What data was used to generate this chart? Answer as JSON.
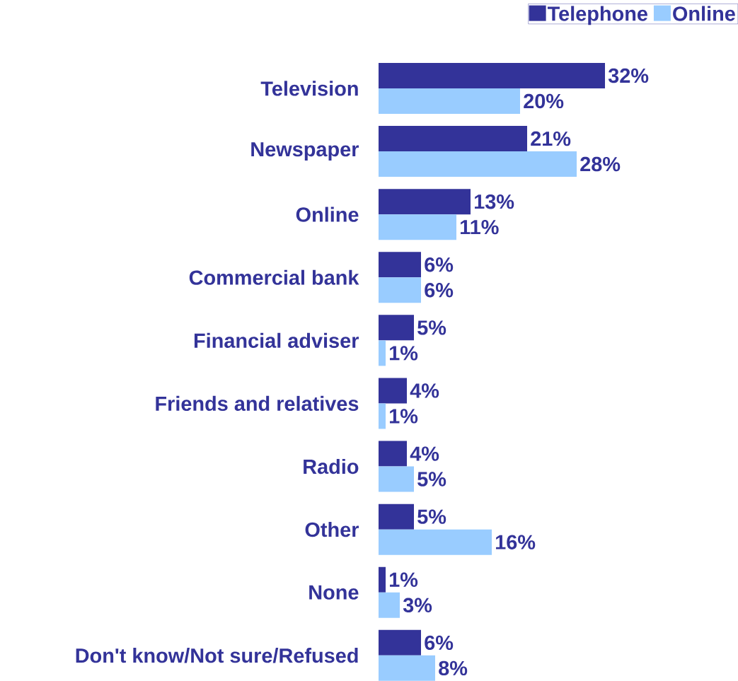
{
  "chart_data": {
    "type": "bar",
    "orientation": "horizontal",
    "legend": "top right",
    "categories": [
      "Television",
      "Newspaper",
      "Online",
      "Commercial bank",
      "Financial adviser",
      "Friends and relatives",
      "Radio",
      "Other",
      "None",
      "Don't know/Not sure/Refused"
    ],
    "series": [
      {
        "name": "Telephone",
        "color": "#333399",
        "values": [
          32,
          21,
          13,
          6,
          5,
          4,
          4,
          5,
          1,
          6
        ],
        "value_labels": [
          "32%",
          "21%",
          "13%",
          "6%",
          "5%",
          "4%",
          "4%",
          "5%",
          "1%",
          "6%"
        ]
      },
      {
        "name": "Online",
        "color": "#99ccff",
        "values": [
          20,
          28,
          11,
          6,
          1,
          1,
          5,
          16,
          3,
          8
        ],
        "value_labels": [
          "20%",
          "28%",
          "11%",
          "6%",
          "1%",
          "1%",
          "5%",
          "16%",
          "3%",
          "8%"
        ]
      }
    ]
  }
}
